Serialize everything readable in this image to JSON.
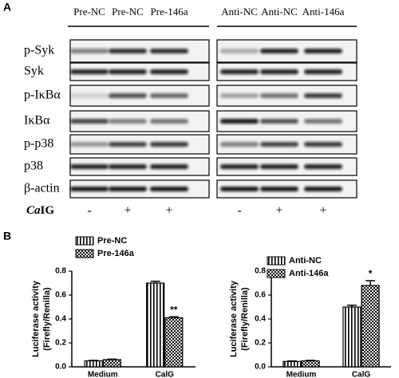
{
  "panel_a": {
    "label": "A",
    "left_headers": [
      "Pre-NC",
      "Pre-NC",
      "Pre-146a"
    ],
    "right_headers": [
      "Anti-NC",
      "Anti-NC",
      "Anti-146a"
    ],
    "rows": [
      "p-Syk",
      "Syk",
      "p-IκBα",
      "IκBα",
      "p-p38",
      "p38",
      "β-actin"
    ],
    "treatment": {
      "prefix": "Ca",
      "suffix": "IG"
    },
    "left_signs": [
      "-",
      "+",
      "+"
    ],
    "right_signs": [
      "-",
      "+",
      "+"
    ]
  },
  "panel_b_label": "B",
  "chart_data": [
    {
      "type": "bar",
      "ylabel": [
        "Luciferase activity",
        "(Firefly/Renilla)"
      ],
      "categories": [
        "Medium",
        "CalG"
      ],
      "series": [
        {
          "name": "Pre-NC",
          "color": "#000000",
          "pattern": "vertical-stripes",
          "values": [
            0.05,
            0.7
          ],
          "errors": [
            0.004,
            0.015
          ],
          "annotations": [
            null,
            null
          ]
        },
        {
          "name": "Pre-146a",
          "color": "#000000",
          "pattern": "checkerboard",
          "values": [
            0.06,
            0.41
          ],
          "errors": [
            0.004,
            0.008
          ],
          "annotations": [
            null,
            "**"
          ]
        }
      ],
      "ylim": [
        0,
        0.8
      ],
      "yticks": [
        {
          "value": 0,
          "label": "0.0"
        },
        0.2,
        0.4,
        0.6,
        0.8
      ]
    },
    {
      "type": "bar",
      "ylabel": [
        "Luciferase activity",
        "(Firefly/Renilla)"
      ],
      "categories": [
        "Medium",
        "CalG"
      ],
      "series": [
        {
          "name": "Anti-NC",
          "color": "#000000",
          "pattern": "vertical-stripes",
          "values": [
            0.045,
            0.5
          ],
          "errors": [
            0.004,
            0.015
          ],
          "annotations": [
            null,
            null
          ]
        },
        {
          "name": "Anti-146a",
          "color": "#000000",
          "pattern": "checkerboard",
          "values": [
            0.05,
            0.68
          ],
          "errors": [
            0.004,
            0.04
          ],
          "annotations": [
            null,
            "*"
          ]
        }
      ],
      "ylim": [
        0,
        0.8
      ],
      "yticks": [
        {
          "value": 0,
          "label": "0.0"
        },
        0.2,
        0.4,
        0.6,
        0.8
      ]
    }
  ]
}
